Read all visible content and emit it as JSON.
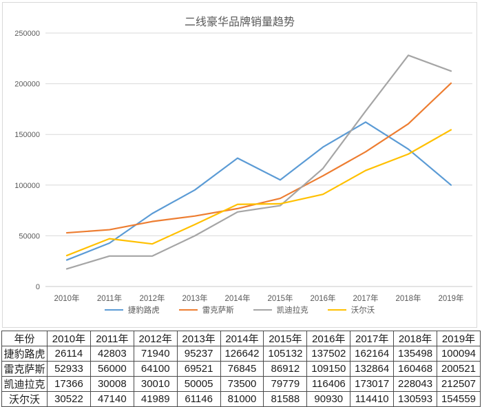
{
  "chart": {
    "frame_border_color": "#d9d9d9",
    "gridline_color": "#d9d9d9",
    "axis_line_color": "#c9c9c9",
    "label_color": "#595959"
  },
  "chart_data": {
    "type": "line",
    "title": "二线豪华品牌销量趋势",
    "categories": [
      "2010年",
      "2011年",
      "2012年",
      "2013年",
      "2014年",
      "2015年",
      "2016年",
      "2017年",
      "2018年",
      "2019年"
    ],
    "series": [
      {
        "name": "捷豹路虎",
        "color": "#5B9BD5",
        "values": [
          26114,
          42803,
          71940,
          95237,
          126642,
          105132,
          137502,
          162164,
          135498,
          100094
        ]
      },
      {
        "name": "雷克萨斯",
        "color": "#ED7D31",
        "values": [
          52933,
          56000,
          64100,
          69521,
          76845,
          86912,
          109150,
          132864,
          160468,
          200521
        ]
      },
      {
        "name": "凯迪拉克",
        "color": "#A5A5A5",
        "values": [
          17366,
          30008,
          30010,
          50005,
          73500,
          79779,
          116406,
          173017,
          228043,
          212507
        ]
      },
      {
        "name": "沃尔沃",
        "color": "#FFC000",
        "values": [
          30522,
          47140,
          41989,
          61146,
          81000,
          81588,
          90930,
          114410,
          130593,
          154559
        ]
      }
    ],
    "xlabel": "",
    "ylabel": "",
    "ylim": [
      0,
      250000
    ],
    "yticks": [
      0,
      50000,
      100000,
      150000,
      200000,
      250000
    ],
    "grid": true,
    "legend_position": "bottom"
  },
  "table": {
    "columns": [
      "年份",
      "2010年",
      "2011年",
      "2012年",
      "2013年",
      "2014年",
      "2015年",
      "2016年",
      "2017年",
      "2018年",
      "2019年"
    ],
    "rows": [
      [
        "捷豹路虎",
        26114,
        42803,
        71940,
        95237,
        126642,
        105132,
        137502,
        162164,
        135498,
        100094
      ],
      [
        "雷克萨斯",
        52933,
        56000,
        64100,
        69521,
        76845,
        86912,
        109150,
        132864,
        160468,
        200521
      ],
      [
        "凯迪拉克",
        17366,
        30008,
        30010,
        50005,
        73500,
        79779,
        116406,
        173017,
        228043,
        212507
      ],
      [
        "沃尔沃",
        30522,
        47140,
        41989,
        61146,
        81000,
        81588,
        90930,
        114410,
        130593,
        154559
      ]
    ]
  }
}
